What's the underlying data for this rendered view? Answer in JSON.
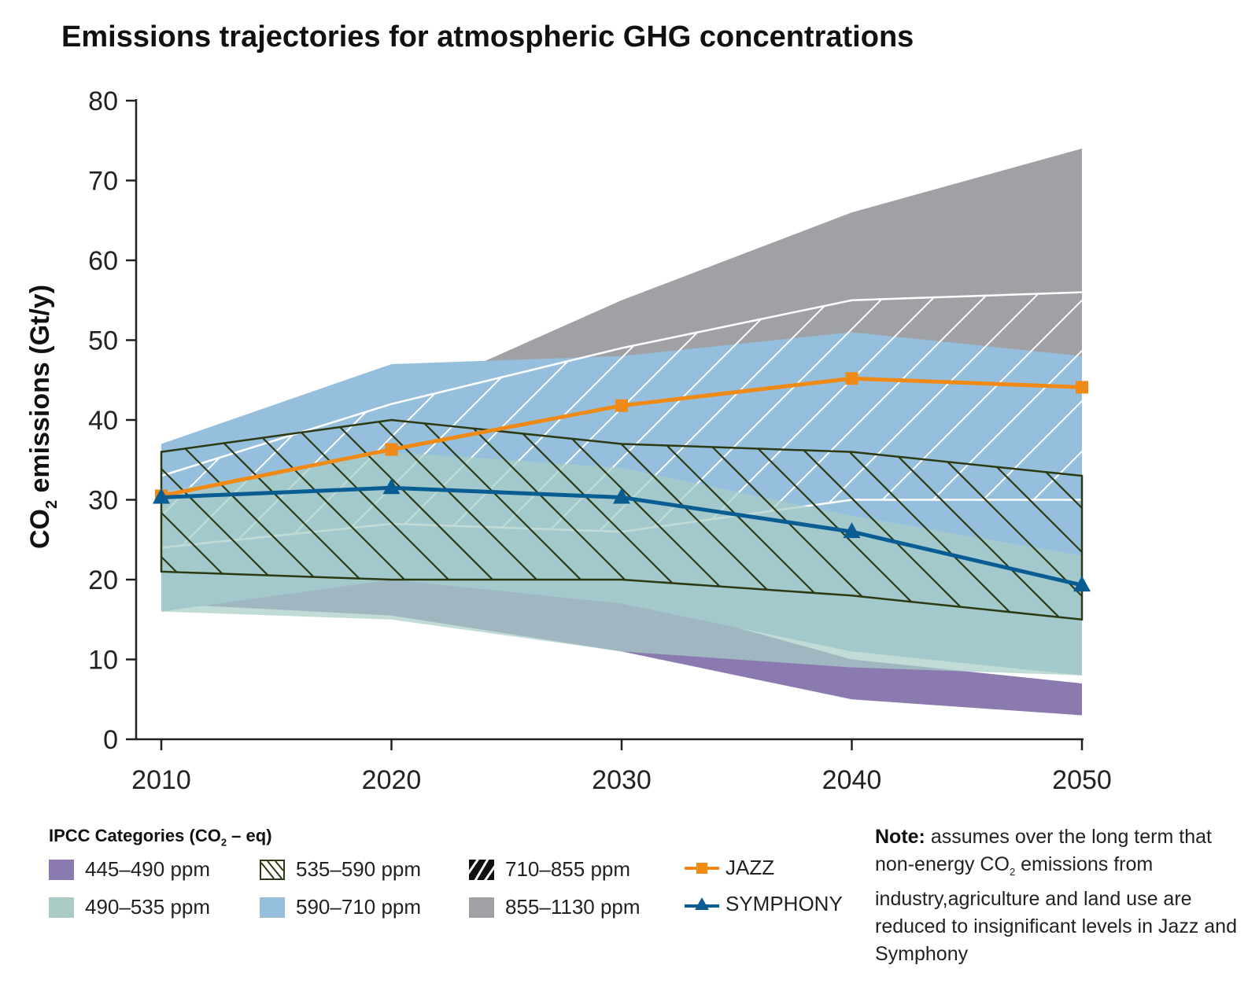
{
  "title": "Emissions trajectories for atmospheric GHG concentrations",
  "chart_data": {
    "type": "area",
    "title": "Emissions trajectories for atmospheric GHG concentrations",
    "ylabel_main": "CO",
    "ylabel_sub": "2",
    "ylabel_rest": " emissions (Gt/y)",
    "ylim": [
      0,
      80
    ],
    "yticks": [
      "0",
      "10",
      "20",
      "30",
      "40",
      "50",
      "60",
      "70",
      "80"
    ],
    "x": [
      2010,
      2020,
      2030,
      2040,
      2050
    ],
    "xticks": [
      "2010",
      "2020",
      "2030",
      "2040",
      "2050"
    ],
    "bands": [
      {
        "name": "445–490 ppm",
        "color": "#8a7ab0",
        "pattern": "solid",
        "x": [
          2010,
          2020,
          2030,
          2040,
          2050
        ],
        "lower": [
          17,
          15.5,
          11,
          5,
          3
        ],
        "upper": [
          25,
          22,
          18,
          10,
          7
        ]
      },
      {
        "name": "855–1130 ppm",
        "color": "#a0a1a5",
        "pattern": "solid",
        "x": [
          2010,
          2020,
          2024,
          2030,
          2040,
          2050
        ],
        "lower": [
          28,
          44,
          47,
          46,
          49,
          47
        ],
        "upper": [
          34,
          46,
          47.3,
          55,
          66,
          74
        ]
      },
      {
        "name": "590–710 ppm",
        "color": "#96bfdd",
        "pattern": "solid",
        "x": [
          2010,
          2020,
          2030,
          2040,
          2050
        ],
        "lower": [
          16,
          20,
          17,
          11,
          8
        ],
        "upper": [
          37,
          47,
          48,
          51,
          48
        ]
      },
      {
        "name": "710–855 ppm",
        "color": "#ffffff",
        "pattern": "hatch-white",
        "x": [
          2010,
          2020,
          2030,
          2040,
          2050
        ],
        "lower": [
          24,
          27,
          26,
          30,
          30
        ],
        "upper": [
          33,
          42,
          49,
          55,
          56
        ]
      },
      {
        "name": "490–535 ppm",
        "color": "#a9cdc6",
        "pattern": "solid",
        "x": [
          2010,
          2020,
          2030,
          2040,
          2050
        ],
        "lower": [
          16,
          15,
          11,
          9,
          8
        ],
        "upper": [
          31,
          36,
          34,
          28,
          23
        ]
      },
      {
        "name": "535–590 ppm",
        "color": "#2b3a12",
        "pattern": "hatch-dark",
        "x": [
          2010,
          2020,
          2030,
          2040,
          2050
        ],
        "lower": [
          21,
          20,
          20,
          18,
          15
        ],
        "upper": [
          36,
          40,
          37,
          36,
          33
        ]
      }
    ],
    "series": [
      {
        "name": "JAZZ",
        "color": "#ef8a17",
        "marker": "square",
        "x": [
          2010,
          2020,
          2030,
          2040,
          2050
        ],
        "values": [
          30.5,
          36.3,
          41.8,
          45.2,
          44.1
        ]
      },
      {
        "name": "SYMPHONY",
        "color": "#0a5d92",
        "marker": "triangle",
        "x": [
          2010,
          2020,
          2030,
          2040,
          2050
        ],
        "values": [
          30.3,
          31.5,
          30.3,
          26.0,
          19.3
        ]
      }
    ],
    "legend_title_main": "IPCC Categories (CO",
    "legend_title_sub": "2",
    "legend_title_rest": " – eq)",
    "legend": [
      {
        "label": "445–490 ppm",
        "key": "band-445"
      },
      {
        "label": "490–535 ppm",
        "key": "band-490"
      },
      {
        "label": "535–590 ppm",
        "key": "band-535"
      },
      {
        "label": "590–710 ppm",
        "key": "band-590"
      },
      {
        "label": "710–855 ppm",
        "key": "band-710"
      },
      {
        "label": "855–1130 ppm",
        "key": "band-855"
      },
      {
        "label": "JAZZ",
        "key": "jazz"
      },
      {
        "label": "SYMPHONY",
        "key": "symphony"
      }
    ],
    "grid": false
  },
  "note": {
    "label": "Note:",
    "text_1": " assumes over the long term that non-energy CO",
    "sub": "2",
    "text_2": " emissions from industry,agriculture and land use are reduced to insignificant levels in Jazz and Symphony"
  }
}
